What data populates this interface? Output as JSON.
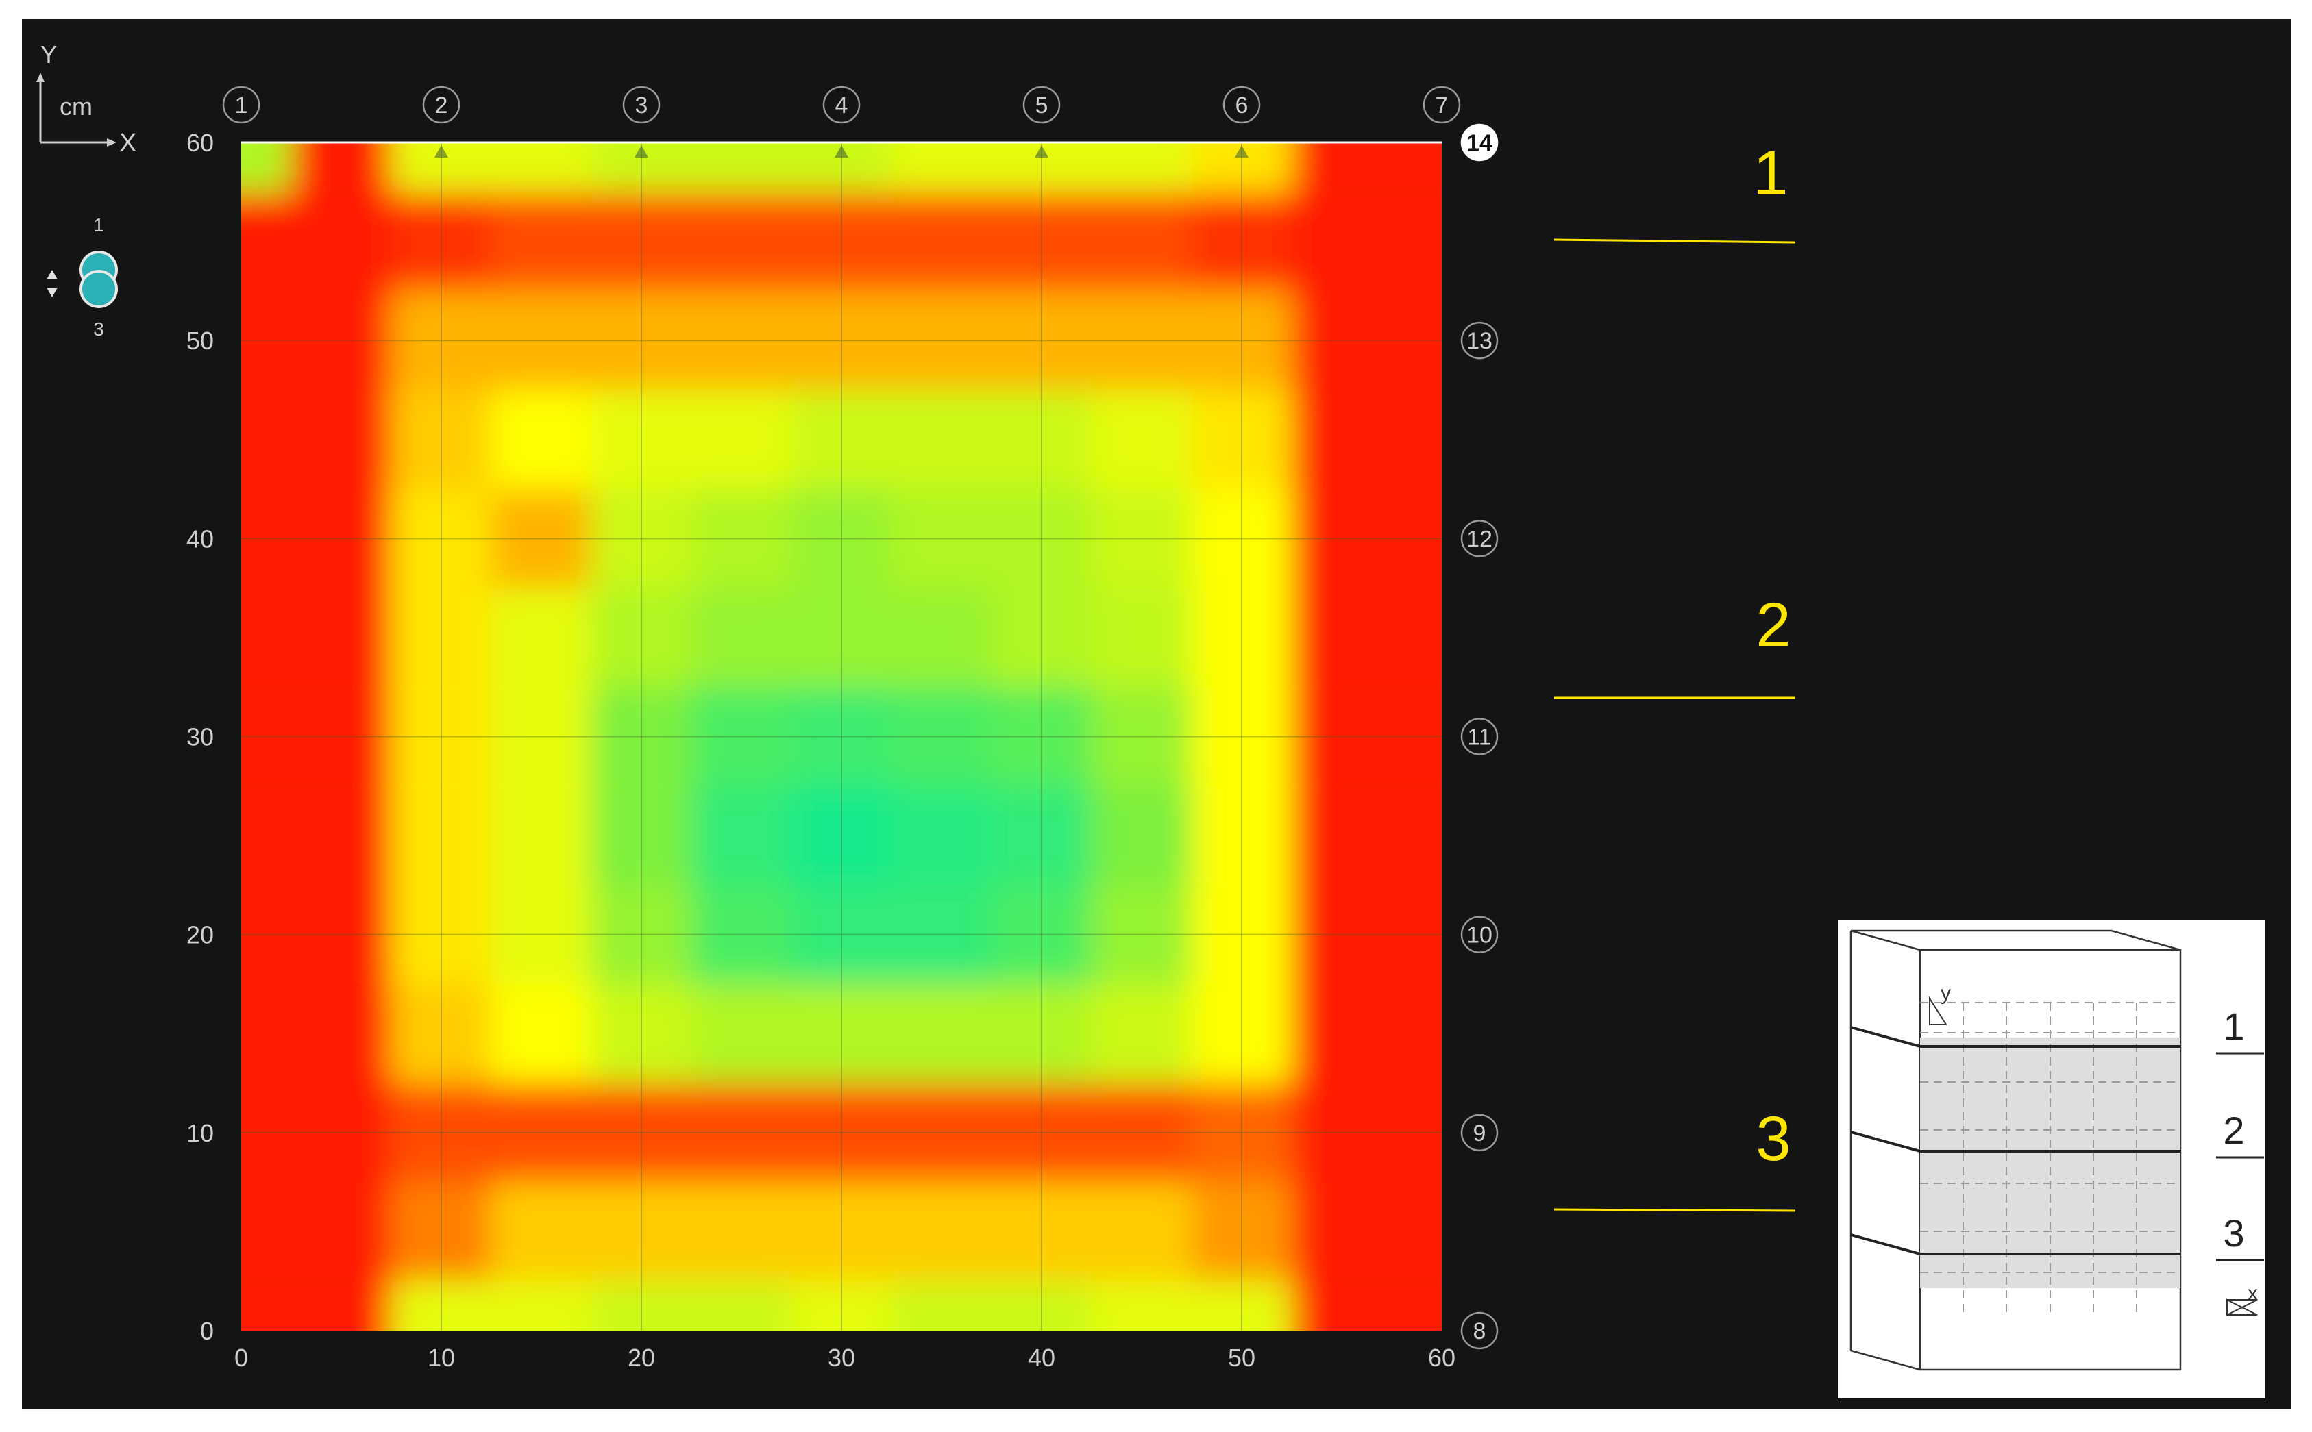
{
  "colors": {
    "background": "#141414",
    "label": "#cfcfcf",
    "circle_stroke": "#9a9a9a",
    "section_label": "#ffe600",
    "teal": "#2ab0b5",
    "scale": [
      "#00e8a0",
      "#7cf03c",
      "#ffff00",
      "#ff8000",
      "#ff0000"
    ]
  },
  "axis_indicator": {
    "y": "Y",
    "x": "X",
    "unit": "cm"
  },
  "layer_selector": {
    "top": "1",
    "bottom": "3",
    "icon": "up-down-arrows-icon"
  },
  "chart_data": {
    "type": "heatmap",
    "title": "",
    "xlabel": "",
    "ylabel": "",
    "xlim": [
      0,
      60
    ],
    "ylim": [
      0,
      60
    ],
    "grid": true,
    "x_ticks": [
      "0",
      "10",
      "20",
      "30",
      "40",
      "50",
      "60"
    ],
    "y_ticks": [
      "0",
      "10",
      "20",
      "30",
      "40",
      "50",
      "60"
    ],
    "top_markers": [
      {
        "label": "1",
        "x": 0
      },
      {
        "label": "2",
        "x": 10
      },
      {
        "label": "3",
        "x": 20
      },
      {
        "label": "4",
        "x": 30
      },
      {
        "label": "5",
        "x": 40
      },
      {
        "label": "6",
        "x": 50
      },
      {
        "label": "7",
        "x": 60
      }
    ],
    "right_markers": [
      {
        "label": "8",
        "y": 0
      },
      {
        "label": "9",
        "y": 10
      },
      {
        "label": "10",
        "y": 20
      },
      {
        "label": "11",
        "y": 30
      },
      {
        "label": "12",
        "y": 40
      },
      {
        "label": "13",
        "y": 50
      },
      {
        "label": "14",
        "y": 60,
        "highlighted": true
      }
    ],
    "colorscale": [
      "#00e8a0",
      "#7cf03c",
      "#ffff00",
      "#ff8000",
      "#ff0000"
    ],
    "zmin": 0,
    "zmax": 1,
    "x": [
      0,
      5,
      10,
      15,
      20,
      25,
      30,
      35,
      40,
      45,
      50,
      55,
      60
    ],
    "y": [
      0,
      5,
      10,
      15,
      20,
      25,
      30,
      35,
      40,
      45,
      50,
      55,
      60
    ],
    "z": [
      [
        0.95,
        0.95,
        0.45,
        0.45,
        0.4,
        0.4,
        0.45,
        0.4,
        0.4,
        0.45,
        0.45,
        0.95,
        0.95
      ],
      [
        0.95,
        0.95,
        0.75,
        0.6,
        0.6,
        0.6,
        0.6,
        0.6,
        0.6,
        0.6,
        0.7,
        0.95,
        0.95
      ],
      [
        0.95,
        0.95,
        0.85,
        0.85,
        0.85,
        0.85,
        0.85,
        0.85,
        0.85,
        0.85,
        0.8,
        0.95,
        0.95
      ],
      [
        0.95,
        0.95,
        0.6,
        0.5,
        0.4,
        0.35,
        0.35,
        0.35,
        0.35,
        0.4,
        0.5,
        0.95,
        0.95
      ],
      [
        0.95,
        0.95,
        0.55,
        0.45,
        0.3,
        0.15,
        0.1,
        0.1,
        0.15,
        0.3,
        0.5,
        0.95,
        0.95
      ],
      [
        0.95,
        0.95,
        0.55,
        0.45,
        0.25,
        0.1,
        0.05,
        0.08,
        0.1,
        0.25,
        0.5,
        0.95,
        0.95
      ],
      [
        0.95,
        0.95,
        0.55,
        0.45,
        0.25,
        0.15,
        0.12,
        0.15,
        0.18,
        0.3,
        0.5,
        0.95,
        0.95
      ],
      [
        0.95,
        0.95,
        0.55,
        0.45,
        0.35,
        0.3,
        0.3,
        0.3,
        0.35,
        0.38,
        0.5,
        0.95,
        0.95
      ],
      [
        0.95,
        0.95,
        0.55,
        0.65,
        0.4,
        0.35,
        0.3,
        0.35,
        0.35,
        0.4,
        0.5,
        0.95,
        0.95
      ],
      [
        0.95,
        0.95,
        0.6,
        0.5,
        0.45,
        0.45,
        0.4,
        0.4,
        0.4,
        0.45,
        0.55,
        0.95,
        0.95
      ],
      [
        0.95,
        0.95,
        0.65,
        0.65,
        0.65,
        0.65,
        0.65,
        0.65,
        0.65,
        0.65,
        0.65,
        0.95,
        0.95
      ],
      [
        0.95,
        0.95,
        0.9,
        0.85,
        0.85,
        0.85,
        0.85,
        0.85,
        0.85,
        0.85,
        0.9,
        0.95,
        0.95
      ],
      [
        0.35,
        0.95,
        0.45,
        0.45,
        0.4,
        0.4,
        0.4,
        0.45,
        0.45,
        0.45,
        0.55,
        0.95,
        0.95
      ]
    ],
    "section_labels": [
      "1",
      "2",
      "3"
    ]
  },
  "inset": {
    "axis_y": "y",
    "axis_x": "x",
    "labels": [
      "1",
      "2",
      "3"
    ]
  }
}
